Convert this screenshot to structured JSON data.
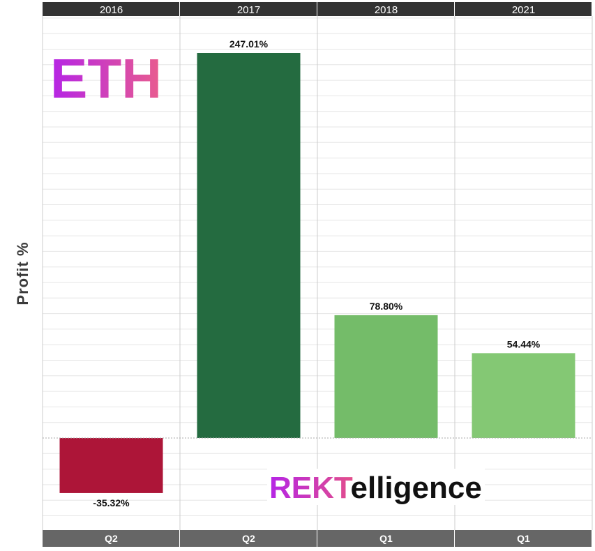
{
  "chart_data": {
    "type": "bar",
    "ylabel": "Profit %",
    "ylim": [
      -60,
      270
    ],
    "grid": true,
    "categories": [
      "2016",
      "2017",
      "2018",
      "2021"
    ],
    "quarters": [
      "Q2",
      "Q2",
      "Q1",
      "Q1"
    ],
    "values": [
      -35.32,
      247.01,
      78.8,
      54.44
    ],
    "value_labels": [
      "-35.32%",
      "247.01%",
      "78.80%",
      "54.44%"
    ],
    "colors": [
      "#ad1538",
      "#246b40",
      "#74bc69",
      "#84c874"
    ]
  },
  "logos": {
    "eth": "ETH",
    "rekt_prefix": "REKT",
    "rekt_suffix": "elligence"
  },
  "colors": {
    "header_bg": "#333333",
    "footer_bg": "#666666",
    "grid": "#e6e6e6"
  }
}
